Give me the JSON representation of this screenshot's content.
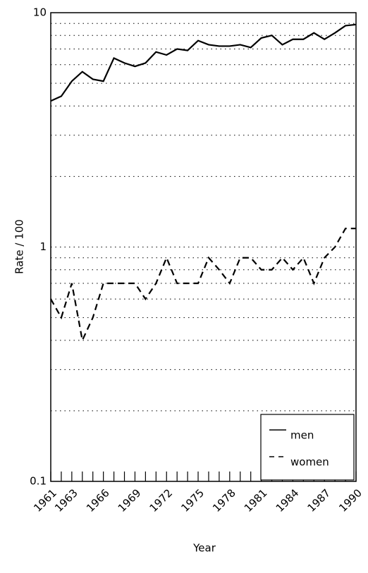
{
  "chart_data": {
    "type": "line",
    "x": [
      1961,
      1962,
      1963,
      1964,
      1965,
      1966,
      1967,
      1968,
      1969,
      1970,
      1971,
      1972,
      1973,
      1974,
      1975,
      1976,
      1977,
      1978,
      1979,
      1980,
      1981,
      1982,
      1983,
      1984,
      1985,
      1986,
      1987,
      1988,
      1989,
      1990
    ],
    "series": [
      {
        "name": "men",
        "color": "#000000",
        "dash": "solid",
        "values": [
          4.2,
          4.4,
          5.1,
          5.6,
          5.2,
          5.1,
          6.4,
          6.1,
          5.9,
          6.1,
          6.8,
          6.6,
          7.0,
          6.9,
          7.6,
          7.3,
          7.2,
          7.2,
          7.3,
          7.1,
          7.8,
          8.0,
          7.3,
          7.7,
          7.7,
          8.2,
          7.7,
          8.2,
          8.8,
          8.9
        ]
      },
      {
        "name": "women",
        "color": "#000000",
        "dash": "dashed",
        "values": [
          0.6,
          0.5,
          0.7,
          0.4,
          0.5,
          0.7,
          0.7,
          0.7,
          0.7,
          0.6,
          0.7,
          0.9,
          0.7,
          0.7,
          0.7,
          0.9,
          0.8,
          0.7,
          0.9,
          0.9,
          0.8,
          0.8,
          0.9,
          0.8,
          0.9,
          0.7,
          0.9,
          1.0,
          1.2,
          1.2
        ]
      }
    ],
    "xlabel": "Year",
    "ylabel": "Rate / 100",
    "xlim": [
      1961,
      1990
    ],
    "xticks": [
      1961,
      1963,
      1966,
      1969,
      1972,
      1975,
      1978,
      1981,
      1984,
      1987,
      1990
    ],
    "ylim": [
      0.1,
      10
    ],
    "yticks": [
      {
        "value": 0.1,
        "label": "0.1"
      },
      1,
      10
    ],
    "ylog": true,
    "grid": "dotted",
    "minor_gridlines": [
      0.2,
      0.3,
      0.4,
      0.5,
      0.6,
      0.7,
      0.8,
      0.9,
      2,
      3,
      4,
      5,
      6,
      7,
      8,
      9
    ],
    "legend": "lower right"
  }
}
